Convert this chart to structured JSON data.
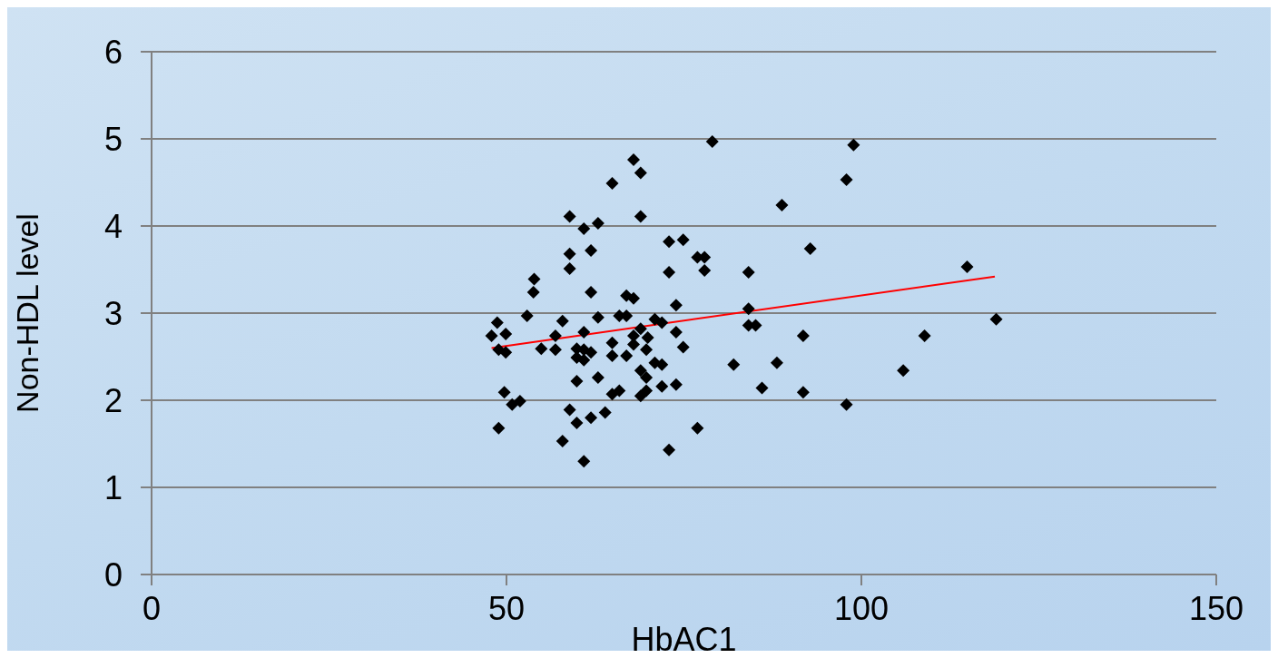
{
  "chart_data": {
    "type": "scatter",
    "xlabel": "HbAC1",
    "ylabel": "Non-HDL level",
    "xlim": [
      0,
      150
    ],
    "xticks": [
      0,
      50,
      100,
      150
    ],
    "ylim": [
      0,
      6
    ],
    "yticks": [
      0,
      1,
      2,
      3,
      4,
      5,
      6
    ],
    "grid": "y",
    "legend": false,
    "marker": "diamond",
    "series": [
      {
        "color": "#000000",
        "x": [
          47.9,
          48.7,
          48.9,
          49.9,
          49.9,
          48.9,
          49.7,
          50.8,
          51.9,
          52.9,
          53.9,
          53.8,
          54.9,
          56.9,
          56.9,
          57.9,
          57.9,
          58.9,
          58.9,
          58.9,
          58.9,
          59.9,
          59.9,
          59.9,
          59.9,
          60.9,
          60.9,
          60.9,
          60.9,
          60.9,
          61.9,
          61.9,
          61.9,
          61.9,
          62.9,
          62.9,
          62.9,
          63.9,
          64.9,
          64.9,
          64.9,
          64.9,
          65.9,
          65.9,
          66.9,
          66.9,
          66.9,
          67.9,
          67.9,
          67.9,
          67.9,
          68.9,
          68.9,
          68.9,
          68.9,
          68.9,
          69.7,
          69.7,
          69.7,
          69.9,
          70.9,
          70.9,
          71.9,
          71.9,
          71.9,
          72.9,
          72.9,
          72.9,
          73.9,
          73.9,
          73.9,
          74.9,
          74.9,
          76.9,
          76.9,
          77.9,
          77.9,
          79.0,
          82.0,
          84.1,
          84.1,
          84.1,
          85.1,
          86.0,
          88.1,
          88.8,
          91.8,
          91.8,
          92.8,
          97.9,
          97.9,
          98.9,
          105.9,
          108.9,
          114.9,
          119.0
        ],
        "values": [
          2.74,
          2.89,
          2.58,
          2.76,
          2.55,
          1.68,
          2.09,
          1.95,
          1.99,
          2.97,
          3.39,
          3.24,
          2.59,
          2.74,
          2.58,
          2.91,
          1.53,
          4.11,
          3.68,
          3.51,
          1.89,
          2.59,
          2.49,
          2.22,
          1.74,
          3.97,
          2.78,
          2.58,
          2.46,
          1.3,
          3.72,
          3.24,
          2.55,
          1.8,
          4.03,
          2.95,
          2.26,
          1.86,
          4.49,
          2.66,
          2.51,
          2.07,
          2.97,
          2.11,
          3.2,
          2.97,
          2.51,
          4.76,
          3.17,
          2.74,
          2.64,
          4.61,
          4.11,
          2.82,
          2.34,
          2.05,
          2.58,
          2.26,
          2.11,
          2.72,
          2.93,
          2.43,
          2.89,
          2.41,
          2.16,
          3.82,
          3.47,
          1.43,
          3.09,
          2.78,
          2.18,
          3.84,
          2.61,
          1.68,
          3.64,
          3.64,
          3.49,
          4.97,
          2.41,
          3.47,
          3.05,
          2.86,
          2.86,
          2.14,
          2.43,
          4.24,
          2.09,
          2.74,
          3.74,
          4.53,
          1.95,
          4.93,
          2.34,
          2.74,
          3.53,
          2.93
        ]
      },
      {
        "type": "line",
        "color": "#ff0000",
        "marker": "none",
        "x": [
          47.9,
          118.8
        ],
        "values": [
          2.6,
          3.42
        ]
      }
    ]
  }
}
